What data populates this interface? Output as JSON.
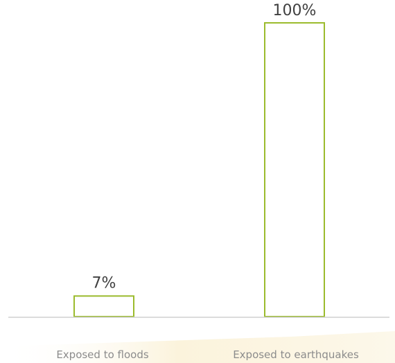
{
  "chart_data": {
    "type": "bar",
    "categories": [
      "Exposed to floods",
      "Exposed to earthquakes"
    ],
    "values": [
      7,
      100
    ],
    "value_labels": [
      "7%",
      "100%"
    ],
    "ylim": [
      0,
      100
    ],
    "grid": false,
    "legend": "none",
    "colors": {
      "bar_outline": "#9bbb2c",
      "bar_fill": "#ffffff",
      "axis": "#d0d0d0",
      "value_text": "#404040",
      "category_text": "#8c8c8c",
      "footer_band": "#fbf3dc"
    }
  }
}
